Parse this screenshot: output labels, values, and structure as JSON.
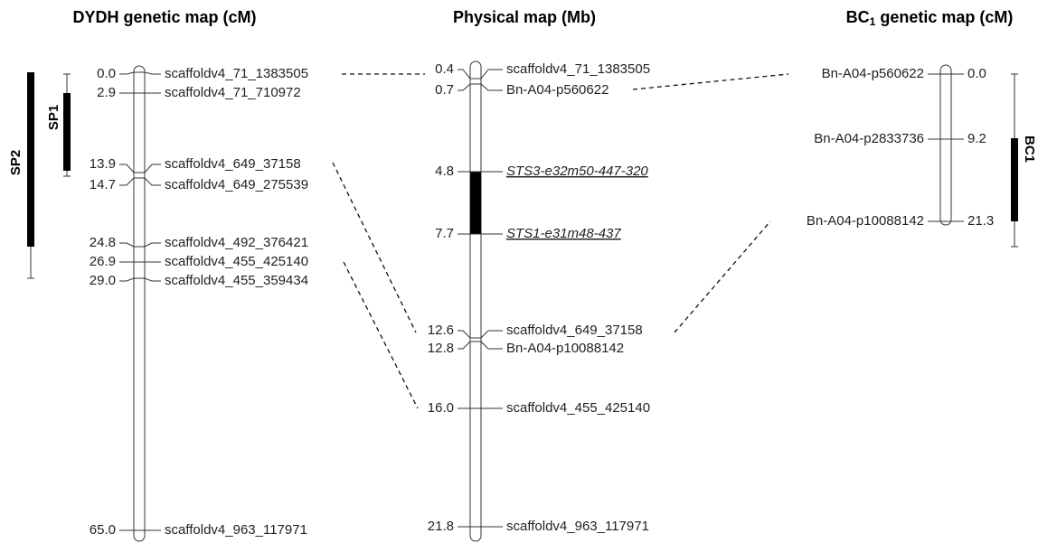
{
  "maps": [
    {
      "title": "DYDH genetic map (cM)",
      "markers": [
        {
          "position": "0.0",
          "name": "scaffoldv4_71_1383505"
        },
        {
          "position": "2.9",
          "name": "scaffoldv4_71_710972"
        },
        {
          "position": "13.9",
          "name": "scaffoldv4_649_37158"
        },
        {
          "position": "14.7",
          "name": "scaffoldv4_649_275539"
        },
        {
          "position": "24.8",
          "name": "scaffoldv4_492_376421"
        },
        {
          "position": "26.9",
          "name": "scaffoldv4_455_425140"
        },
        {
          "position": "29.0",
          "name": "scaffoldv4_455_359434"
        },
        {
          "position": "65.0",
          "name": "scaffoldv4_963_117971"
        }
      ]
    },
    {
      "title": "Physical map (Mb)",
      "markers": [
        {
          "position": "0.4",
          "name": "scaffoldv4_71_1383505"
        },
        {
          "position": "0.7",
          "name": "Bn-A04-p560622"
        },
        {
          "position": "4.8",
          "name": "STS3-e32m50-447-320"
        },
        {
          "position": "7.7",
          "name": "STS1-e31m48-437"
        },
        {
          "position": "12.6",
          "name": "scaffoldv4_649_37158"
        },
        {
          "position": "12.8",
          "name": "Bn-A04-p10088142"
        },
        {
          "position": "16.0",
          "name": "scaffoldv4_455_425140"
        },
        {
          "position": "21.8",
          "name": "scaffoldv4_963_117971"
        }
      ]
    },
    {
      "title": {
        "main": "BC",
        "subscript": "1",
        "rest": " genetic map (cM)"
      },
      "markers": [
        {
          "position": "0.0",
          "name": "Bn-A04-p560622"
        },
        {
          "position": "9.2",
          "name": "Bn-A04-p2833736"
        },
        {
          "position": "21.3",
          "name": "Bn-A04-p10088142"
        }
      ]
    }
  ],
  "intervals": [
    {
      "label": "SP1"
    },
    {
      "label": "SP2"
    },
    {
      "label": "BC1"
    }
  ]
}
